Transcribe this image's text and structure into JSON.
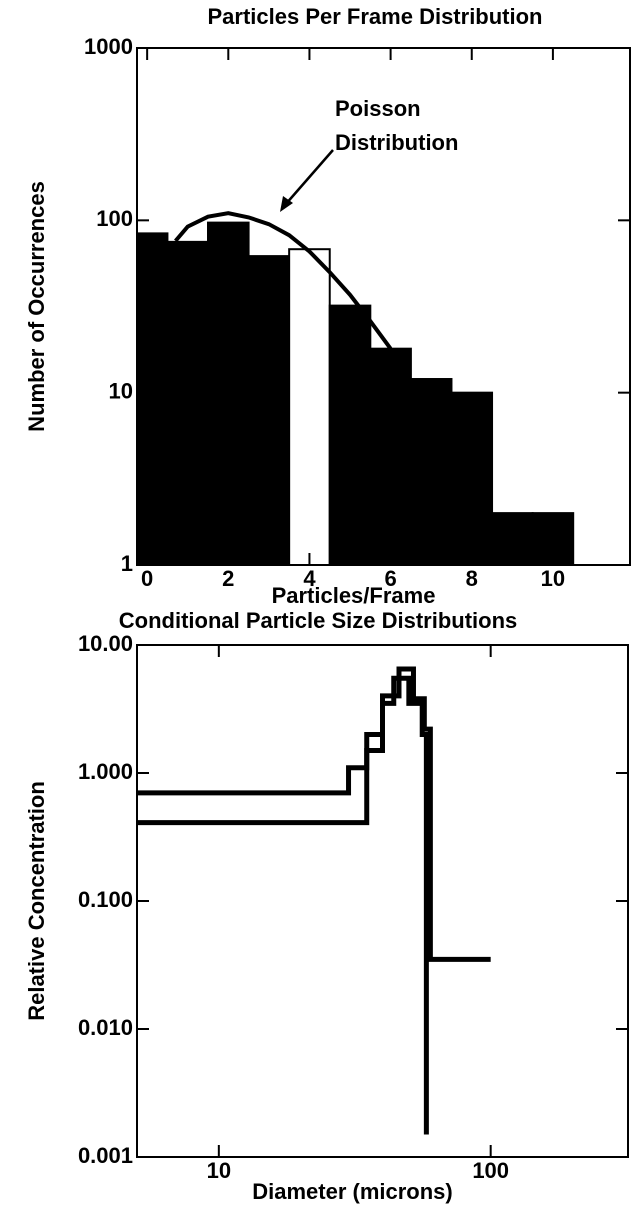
{
  "chart_data": [
    {
      "type": "histogram",
      "title": "Particles Per Frame Distribution",
      "xlabel": "Particles/Frame",
      "ylabel": "Number of Occurrences",
      "bins": [
        -0.5,
        0.5,
        1.5,
        2.5,
        3.5,
        4.5,
        5.5,
        6.5,
        7.5,
        8.5,
        9.5,
        10.5
      ],
      "counts": [
        84,
        75,
        97,
        62,
        68,
        32,
        18,
        12,
        10,
        2,
        2
      ],
      "bar_colors": [
        "#000000",
        "#000000",
        "#000000",
        "#000000",
        "#ffffff",
        "#000000",
        "#000000",
        "#000000",
        "#000000",
        "#000000",
        "#000000"
      ],
      "lines": [
        {
          "color": "#000000",
          "x": [
            0.7,
            1,
            1.5,
            2,
            2.5,
            3,
            3.5,
            4,
            4.5,
            5,
            5.5,
            6
          ],
          "y": [
            76,
            92,
            105,
            110,
            104,
            95,
            82,
            66,
            50,
            37,
            26,
            18
          ]
        }
      ],
      "annotation": [
        "Poisson",
        "Distribution"
      ],
      "xlim": [
        -0.25,
        11.9
      ],
      "xticks": [
        0,
        2,
        4,
        6,
        8,
        10
      ],
      "ylim": [
        1,
        1000
      ],
      "yticks": [
        1,
        10,
        100,
        1000
      ],
      "ylog": true
    },
    {
      "type": "line",
      "title": "Conditional Particle Size Distributions",
      "xlabel": "Diameter (microns)",
      "ylabel": "Relative Concentration",
      "series": [
        {
          "color": "#000000",
          "x": [
            5,
            30,
            30,
            35,
            35,
            40,
            40,
            46,
            46,
            52,
            52,
            57,
            57,
            60,
            60,
            100
          ],
          "y": [
            0.7,
            0.7,
            1.1,
            1.1,
            2.0,
            2.0,
            4.0,
            4.0,
            6.5,
            6.5,
            3.8,
            3.8,
            2.2,
            2.2,
            0.035,
            0.035
          ]
        },
        {
          "color": "#000000",
          "x": [
            5,
            35,
            35,
            40,
            40,
            44,
            44,
            50,
            50,
            56,
            56,
            58,
            58
          ],
          "y": [
            0.41,
            0.41,
            1.5,
            1.5,
            3.5,
            3.5,
            5.5,
            5.5,
            3.5,
            3.5,
            2.0,
            2.0,
            0.0015
          ]
        }
      ],
      "xlim": [
        5,
        320
      ],
      "xticks": [
        10,
        100
      ],
      "xlog": true,
      "ylim": [
        0.001,
        10
      ],
      "yticks": [
        {
          "value": 0.001,
          "label": "0.001"
        },
        {
          "value": 0.01,
          "label": "0.010"
        },
        {
          "value": 0.1,
          "label": "0.100"
        },
        {
          "value": 1,
          "label": "1.000"
        },
        {
          "value": 10,
          "label": "10.00"
        }
      ],
      "ylog": true
    }
  ]
}
